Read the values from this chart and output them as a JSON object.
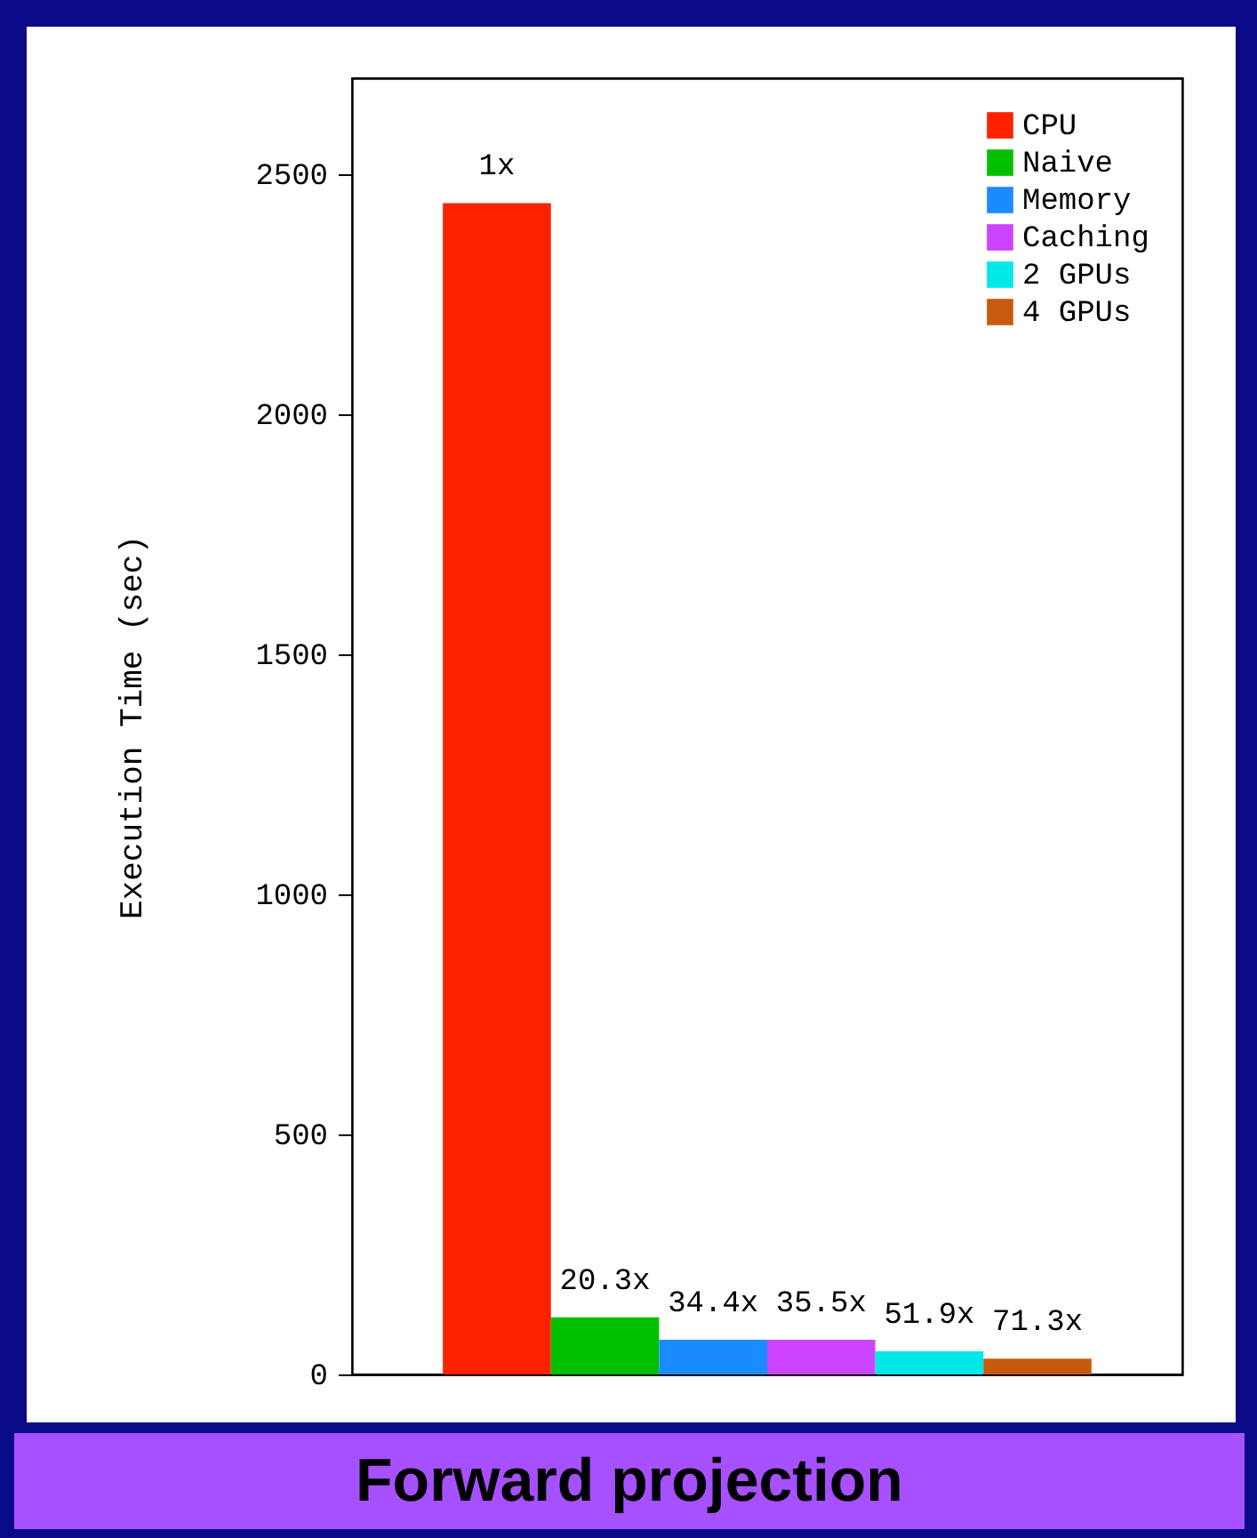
{
  "chart_data": {
    "type": "bar",
    "title": "Forward projection",
    "ylabel": "Execution Time (sec)",
    "categories": [
      null
    ],
    "ylim": [
      0,
      2700
    ],
    "yticks": [
      0,
      500,
      1000,
      1500,
      2000,
      2500
    ],
    "legend": "top right",
    "series": [
      {
        "name": "CPU",
        "color": "#ff2200",
        "values": [
          2440
        ]
      },
      {
        "name": "Naive",
        "color": "#00c000",
        "values": [
          119
        ]
      },
      {
        "name": "Memory",
        "color": "#1a8cff",
        "values": [
          72
        ]
      },
      {
        "name": "Caching",
        "color": "#cc44ff",
        "values": [
          72
        ]
      },
      {
        "name": "2 GPUs",
        "color": "#00e8e8",
        "values": [
          48
        ]
      },
      {
        "name": "4 GPUs",
        "color": "#c85a10",
        "values": [
          33
        ]
      }
    ],
    "annotations": [
      {
        "text": "1x",
        "y": 2440
      },
      {
        "text": "20.3x",
        "y": 119
      },
      {
        "text": "34.4x",
        "y": 72
      },
      {
        "text": "35.5x",
        "y": 72
      },
      {
        "text": "51.9x",
        "y": 48
      },
      {
        "text": "71.3x",
        "y": 33
      }
    ]
  }
}
